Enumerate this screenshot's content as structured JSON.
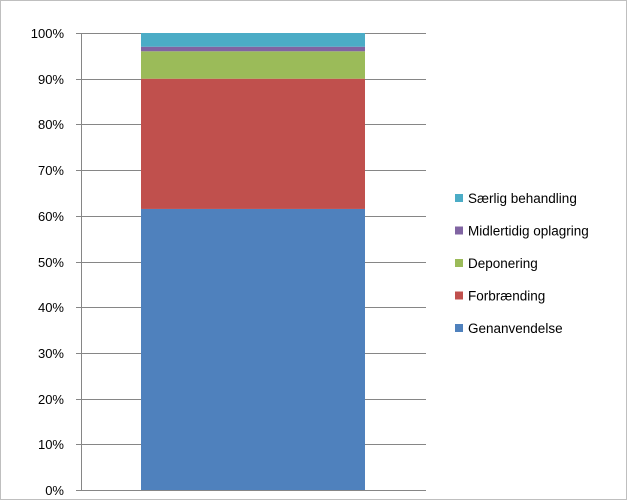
{
  "chart_data": {
    "type": "bar",
    "stacked": true,
    "percent": true,
    "categories": [
      ""
    ],
    "series": [
      {
        "name": "Genanvendelse",
        "values": [
          61.5
        ],
        "color": "#4F81BD"
      },
      {
        "name": "Forbrænding",
        "values": [
          28.5
        ],
        "color": "#C0504D"
      },
      {
        "name": "Deponering",
        "values": [
          6.0
        ],
        "color": "#9BBB59"
      },
      {
        "name": "Midlertidig oplagring",
        "values": [
          1.0
        ],
        "color": "#8064A2"
      },
      {
        "name": "Særlig behandling",
        "values": [
          3.0
        ],
        "color": "#4BACC6"
      }
    ],
    "ylim": [
      0,
      100
    ],
    "yticks": [
      "0%",
      "10%",
      "20%",
      "30%",
      "40%",
      "50%",
      "60%",
      "70%",
      "80%",
      "90%",
      "100%"
    ],
    "grid": true,
    "legend": "right",
    "title": "",
    "xlabel": "",
    "ylabel": ""
  }
}
